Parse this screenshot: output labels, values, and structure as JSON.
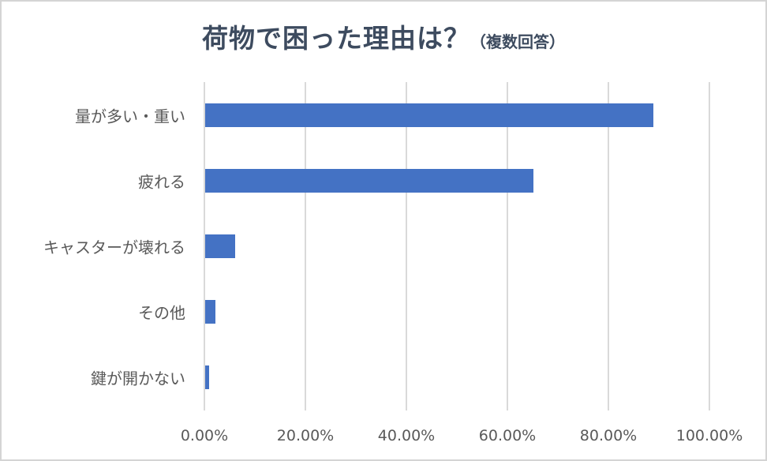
{
  "title": {
    "main": "荷物で困った理由は？",
    "sub": "（複数回答）"
  },
  "colors": {
    "bar": "#4472c4",
    "grid": "#d9d9d9",
    "title": "#3d4b5f",
    "label": "#595959",
    "border": "#d4d4d4"
  },
  "axis": {
    "ticks": [
      "0.00%",
      "20.00%",
      "40.00%",
      "60.00%",
      "80.00%",
      "100.00%"
    ]
  },
  "categories": [
    "量が多い・重い",
    "疲れる",
    "キャスターが壊れる",
    "その他",
    "鍵が開かない"
  ],
  "chart_data": {
    "type": "bar",
    "orientation": "horizontal",
    "title": "荷物で困った理由は？（複数回答）",
    "categories": [
      "量が多い・重い",
      "疲れる",
      "キャスターが壊れる",
      "その他",
      "鍵が開かない"
    ],
    "values": [
      88.7,
      65.0,
      6.0,
      2.0,
      0.8
    ],
    "unit": "%",
    "xlabel": "",
    "ylabel": "",
    "xlim": [
      0,
      100
    ],
    "x_ticks": [
      "0.00%",
      "20.00%",
      "40.00%",
      "60.00%",
      "80.00%",
      "100.00%"
    ],
    "grid": "vertical",
    "legend": "none"
  }
}
